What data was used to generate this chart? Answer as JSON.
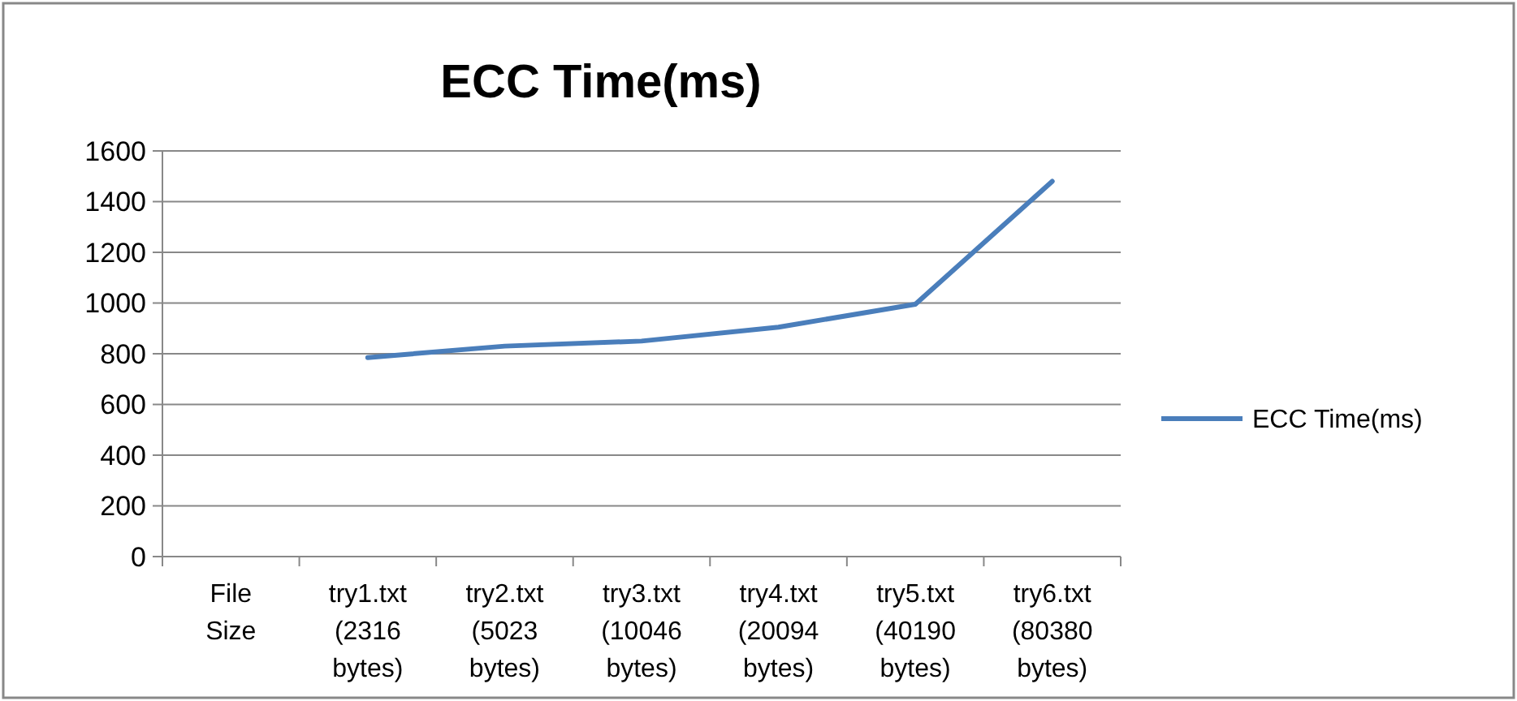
{
  "chart_data": {
    "type": "line",
    "title": "ECC Time(ms)",
    "categories": [
      "File\nSize",
      "try1.txt\n(2316\nbytes)",
      "try2.txt\n(5023\nbytes)",
      "try3.txt\n(10046\nbytes)",
      "try4.txt\n(20094\nbytes)",
      "try5.txt\n(40190\nbytes)",
      "try6.txt\n(80380\nbytes)"
    ],
    "series": [
      {
        "name": "ECC Time(ms)",
        "color": "#4a7ebb",
        "values": [
          null,
          785,
          830,
          850,
          905,
          995,
          1480
        ]
      }
    ],
    "ylim": [
      0,
      1600
    ],
    "yticks": [
      0,
      200,
      400,
      600,
      800,
      1000,
      1200,
      1400,
      1600
    ],
    "grid": "y",
    "legend": "right",
    "marker": "none",
    "line_style": "solid"
  }
}
